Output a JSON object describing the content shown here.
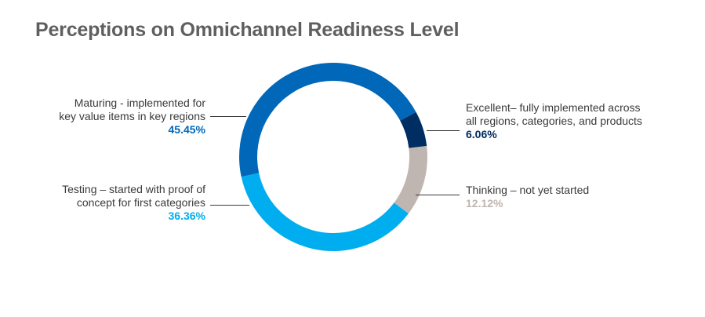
{
  "chart_data": {
    "type": "pie",
    "title": "Perceptions on Omnichannel Readiness Level",
    "donut": true,
    "slices": [
      {
        "label_line1": "Excellent– fully implemented across",
        "label_line2": "all regions, categories, and products",
        "value": 6.06,
        "value_label": "6.06%",
        "color": "#002d62"
      },
      {
        "label_line1": "Thinking – not yet started",
        "label_line2": "",
        "value": 12.12,
        "value_label": "12.12%",
        "color": "#bfb6b1"
      },
      {
        "label_line1": "Testing – started with proof of",
        "label_line2": "concept for first categories",
        "value": 36.36,
        "value_label": "36.36%",
        "color": "#00aeef"
      },
      {
        "label_line1": "Maturing - implemented for",
        "label_line2": "key value items in key regions",
        "value": 45.45,
        "value_label": "45.45%",
        "color": "#0067b9"
      }
    ]
  }
}
